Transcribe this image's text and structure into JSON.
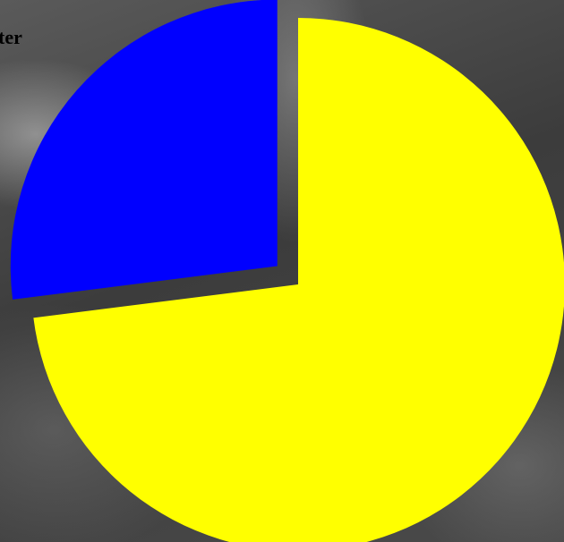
{
  "chart_data": {
    "type": "pie",
    "title": "ter",
    "values": [
      73,
      27
    ],
    "colors": [
      "#ffff00",
      "#0000ff"
    ],
    "explode": [
      false,
      true
    ]
  }
}
